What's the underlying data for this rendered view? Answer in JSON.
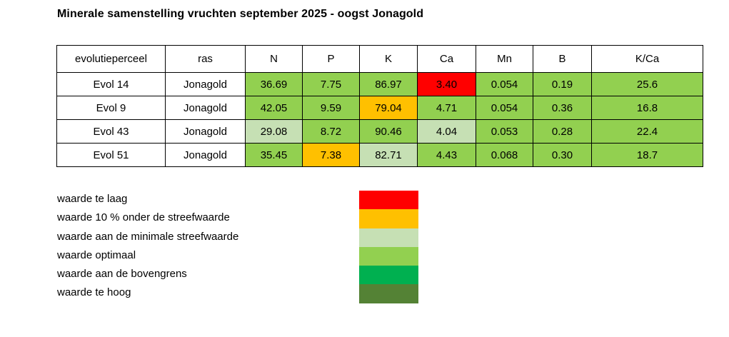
{
  "title": "Minerale samenstelling vruchten september 2025 - oogst Jonagold",
  "status_colors": {
    "too_low": "#FF0000",
    "under_10_pct": "#FFC000",
    "minimal_target": "#C6E0B4",
    "optimal": "#92D050",
    "upper_limit": "#00B050",
    "too_high": "#548235"
  },
  "table": {
    "columns": [
      "evolutieperceel",
      "ras",
      "N",
      "P",
      "K",
      "Ca",
      "Mn",
      "B",
      "K/Ca"
    ],
    "rows": [
      {
        "perceel": "Evol 14",
        "ras": "Jonagold",
        "values": [
          "36.69",
          "7.75",
          "86.97",
          "3.40",
          "0.054",
          "0.19",
          "25.6"
        ],
        "statuses": [
          "optimal",
          "optimal",
          "optimal",
          "too_low",
          "optimal",
          "optimal",
          "optimal"
        ]
      },
      {
        "perceel": "Evol 9",
        "ras": "Jonagold",
        "values": [
          "42.05",
          "9.59",
          "79.04",
          "4.71",
          "0.054",
          "0.36",
          "16.8"
        ],
        "statuses": [
          "optimal",
          "optimal",
          "under_10_pct",
          "optimal",
          "optimal",
          "optimal",
          "optimal"
        ]
      },
      {
        "perceel": "Evol 43",
        "ras": "Jonagold",
        "values": [
          "29.08",
          "8.72",
          "90.46",
          "4.04",
          "0.053",
          "0.28",
          "22.4"
        ],
        "statuses": [
          "minimal_target",
          "optimal",
          "optimal",
          "minimal_target",
          "optimal",
          "optimal",
          "optimal"
        ]
      },
      {
        "perceel": "Evol 51",
        "ras": "Jonagold",
        "values": [
          "35.45",
          "7.38",
          "82.71",
          "4.43",
          "0.068",
          "0.30",
          "18.7"
        ],
        "statuses": [
          "optimal",
          "under_10_pct",
          "minimal_target",
          "optimal",
          "optimal",
          "optimal",
          "optimal"
        ]
      }
    ]
  },
  "legend": {
    "items": [
      {
        "label": "waarde te laag",
        "color": "#FF0000"
      },
      {
        "label": "waarde 10 % onder de streefwaarde",
        "color": "#FFC000"
      },
      {
        "label": "waarde aan de minimale streefwaarde",
        "color": "#C6E0B4"
      },
      {
        "label": "waarde optimaal",
        "color": "#92D050"
      },
      {
        "label": "waarde aan de bovengrens",
        "color": "#00B050"
      },
      {
        "label": "waarde te hoog",
        "color": "#548235"
      }
    ]
  },
  "chart_data": {
    "type": "table",
    "title": "Minerale samenstelling vruchten september 2025 - oogst Jonagold",
    "columns": [
      "evolutieperceel",
      "ras",
      "N",
      "P",
      "K",
      "Ca",
      "Mn",
      "B",
      "K/Ca"
    ],
    "rows": [
      [
        "Evol 14",
        "Jonagold",
        36.69,
        7.75,
        86.97,
        3.4,
        0.054,
        0.19,
        25.6
      ],
      [
        "Evol 9",
        "Jonagold",
        42.05,
        9.59,
        79.04,
        4.71,
        0.054,
        0.36,
        16.8
      ],
      [
        "Evol 43",
        "Jonagold",
        29.08,
        8.72,
        90.46,
        4.04,
        0.053,
        0.28,
        22.4
      ],
      [
        "Evol 51",
        "Jonagold",
        35.45,
        7.38,
        82.71,
        4.43,
        0.068,
        0.3,
        18.7
      ]
    ],
    "cell_status_legend": {
      "too_low": "waarde te laag",
      "under_10_pct": "waarde 10 % onder de streefwaarde",
      "minimal_target": "waarde aan de minimale streefwaarde",
      "optimal": "waarde optimaal",
      "upper_limit": "waarde aan de bovengrens",
      "too_high": "waarde te hoog"
    }
  }
}
